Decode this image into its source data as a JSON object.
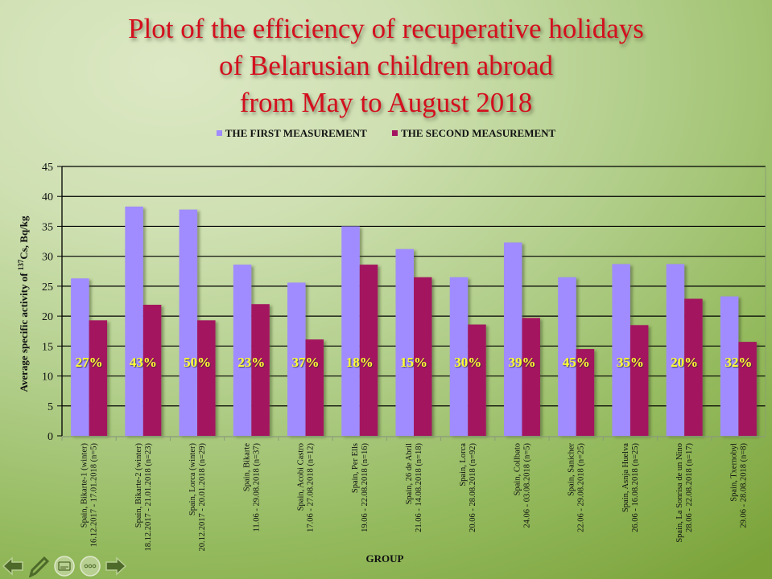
{
  "title": {
    "lines": [
      "Plot of  the efficiency of  recuperative holidays",
      "of  Belarusian children abroad",
      "from May to August 2018"
    ]
  },
  "colors": {
    "first": "#a08cff",
    "second": "#a3135f",
    "title": "#d40f1d",
    "percent_label": "#ffff33",
    "gridline": "#000000"
  },
  "chart_data": {
    "type": "bar",
    "title": "Plot of the efficiency of recuperative holidays of Belarusian children abroad from May to August 2018",
    "xlabel": "GROUP",
    "ylabel_prefix": "Average specific activity of ",
    "ylabel_sup": "137",
    "ylabel_suffix": "Cs,  Bq/kg",
    "ylim": [
      0,
      45
    ],
    "yticks": [
      0,
      5,
      10,
      15,
      20,
      25,
      30,
      35,
      40,
      45
    ],
    "grid": true,
    "legend_position": "top-center",
    "categories": [
      [
        "Spain, Bikarte-1 (winter)",
        "16.12.2017 - 17.01.2018 (n=5)"
      ],
      [
        "Spain, Bikarte-2 (winter)",
        "18.12.2017 - 21.01.2018 (n=23)"
      ],
      [
        "Spain, Lorca (winter)",
        "20.12.2017 - 20.01.2018 (n=29)"
      ],
      [
        "Spain, Bikarte",
        "11.06 - 29.08.2018 (n=37)"
      ],
      [
        "Spain, Acobi Castro",
        "17.06 - 27.08.2018 (n=12)"
      ],
      [
        "Spain, Per Ells",
        "19.06 - 22.08.2018 (n=16)"
      ],
      [
        "Spain, 26 de Abril",
        "21.06 - 14.08.2018 (n=18)"
      ],
      [
        "Spain, Lorca",
        "20.06 - 28.08.2018 (n=92)"
      ],
      [
        "Spain, Collbato",
        "24.06 - 03.08.2018 (n=5)"
      ],
      [
        "Spain, Sanicher",
        "22.06 - 29.08.2018 (n=25)"
      ],
      [
        "Spain, Asnja Huelva",
        "26.06 - 16.08.2018 (n=25)"
      ],
      [
        "Spain, La Sonrisa de un Nino",
        "28.06 - 22.08.2018 (n=17)"
      ],
      [
        "Spain, Txernobyl",
        "29.06 - 28.08.2018 (n=8)"
      ]
    ],
    "series": [
      {
        "name": "THE FIRST MEASUREMENT",
        "values": [
          26.3,
          38.3,
          37.8,
          28.6,
          25.6,
          35.0,
          31.2,
          26.5,
          32.3,
          26.5,
          28.7,
          28.7,
          23.3
        ]
      },
      {
        "name": "THE SECOND MEASUREMENT",
        "values": [
          19.3,
          21.9,
          19.3,
          22.0,
          16.1,
          28.6,
          26.5,
          18.6,
          19.7,
          14.5,
          18.5,
          22.9,
          15.7
        ]
      }
    ],
    "annotations": [
      "27%",
      "43%",
      "50%",
      "23%",
      "37%",
      "18%",
      "15%",
      "30%",
      "39%",
      "45%",
      "35%",
      "20%",
      "32%"
    ]
  },
  "nav": {
    "icons": [
      "arrow-left-icon",
      "pencil-icon",
      "subtitles-icon",
      "more-icon",
      "arrow-right-icon"
    ]
  }
}
